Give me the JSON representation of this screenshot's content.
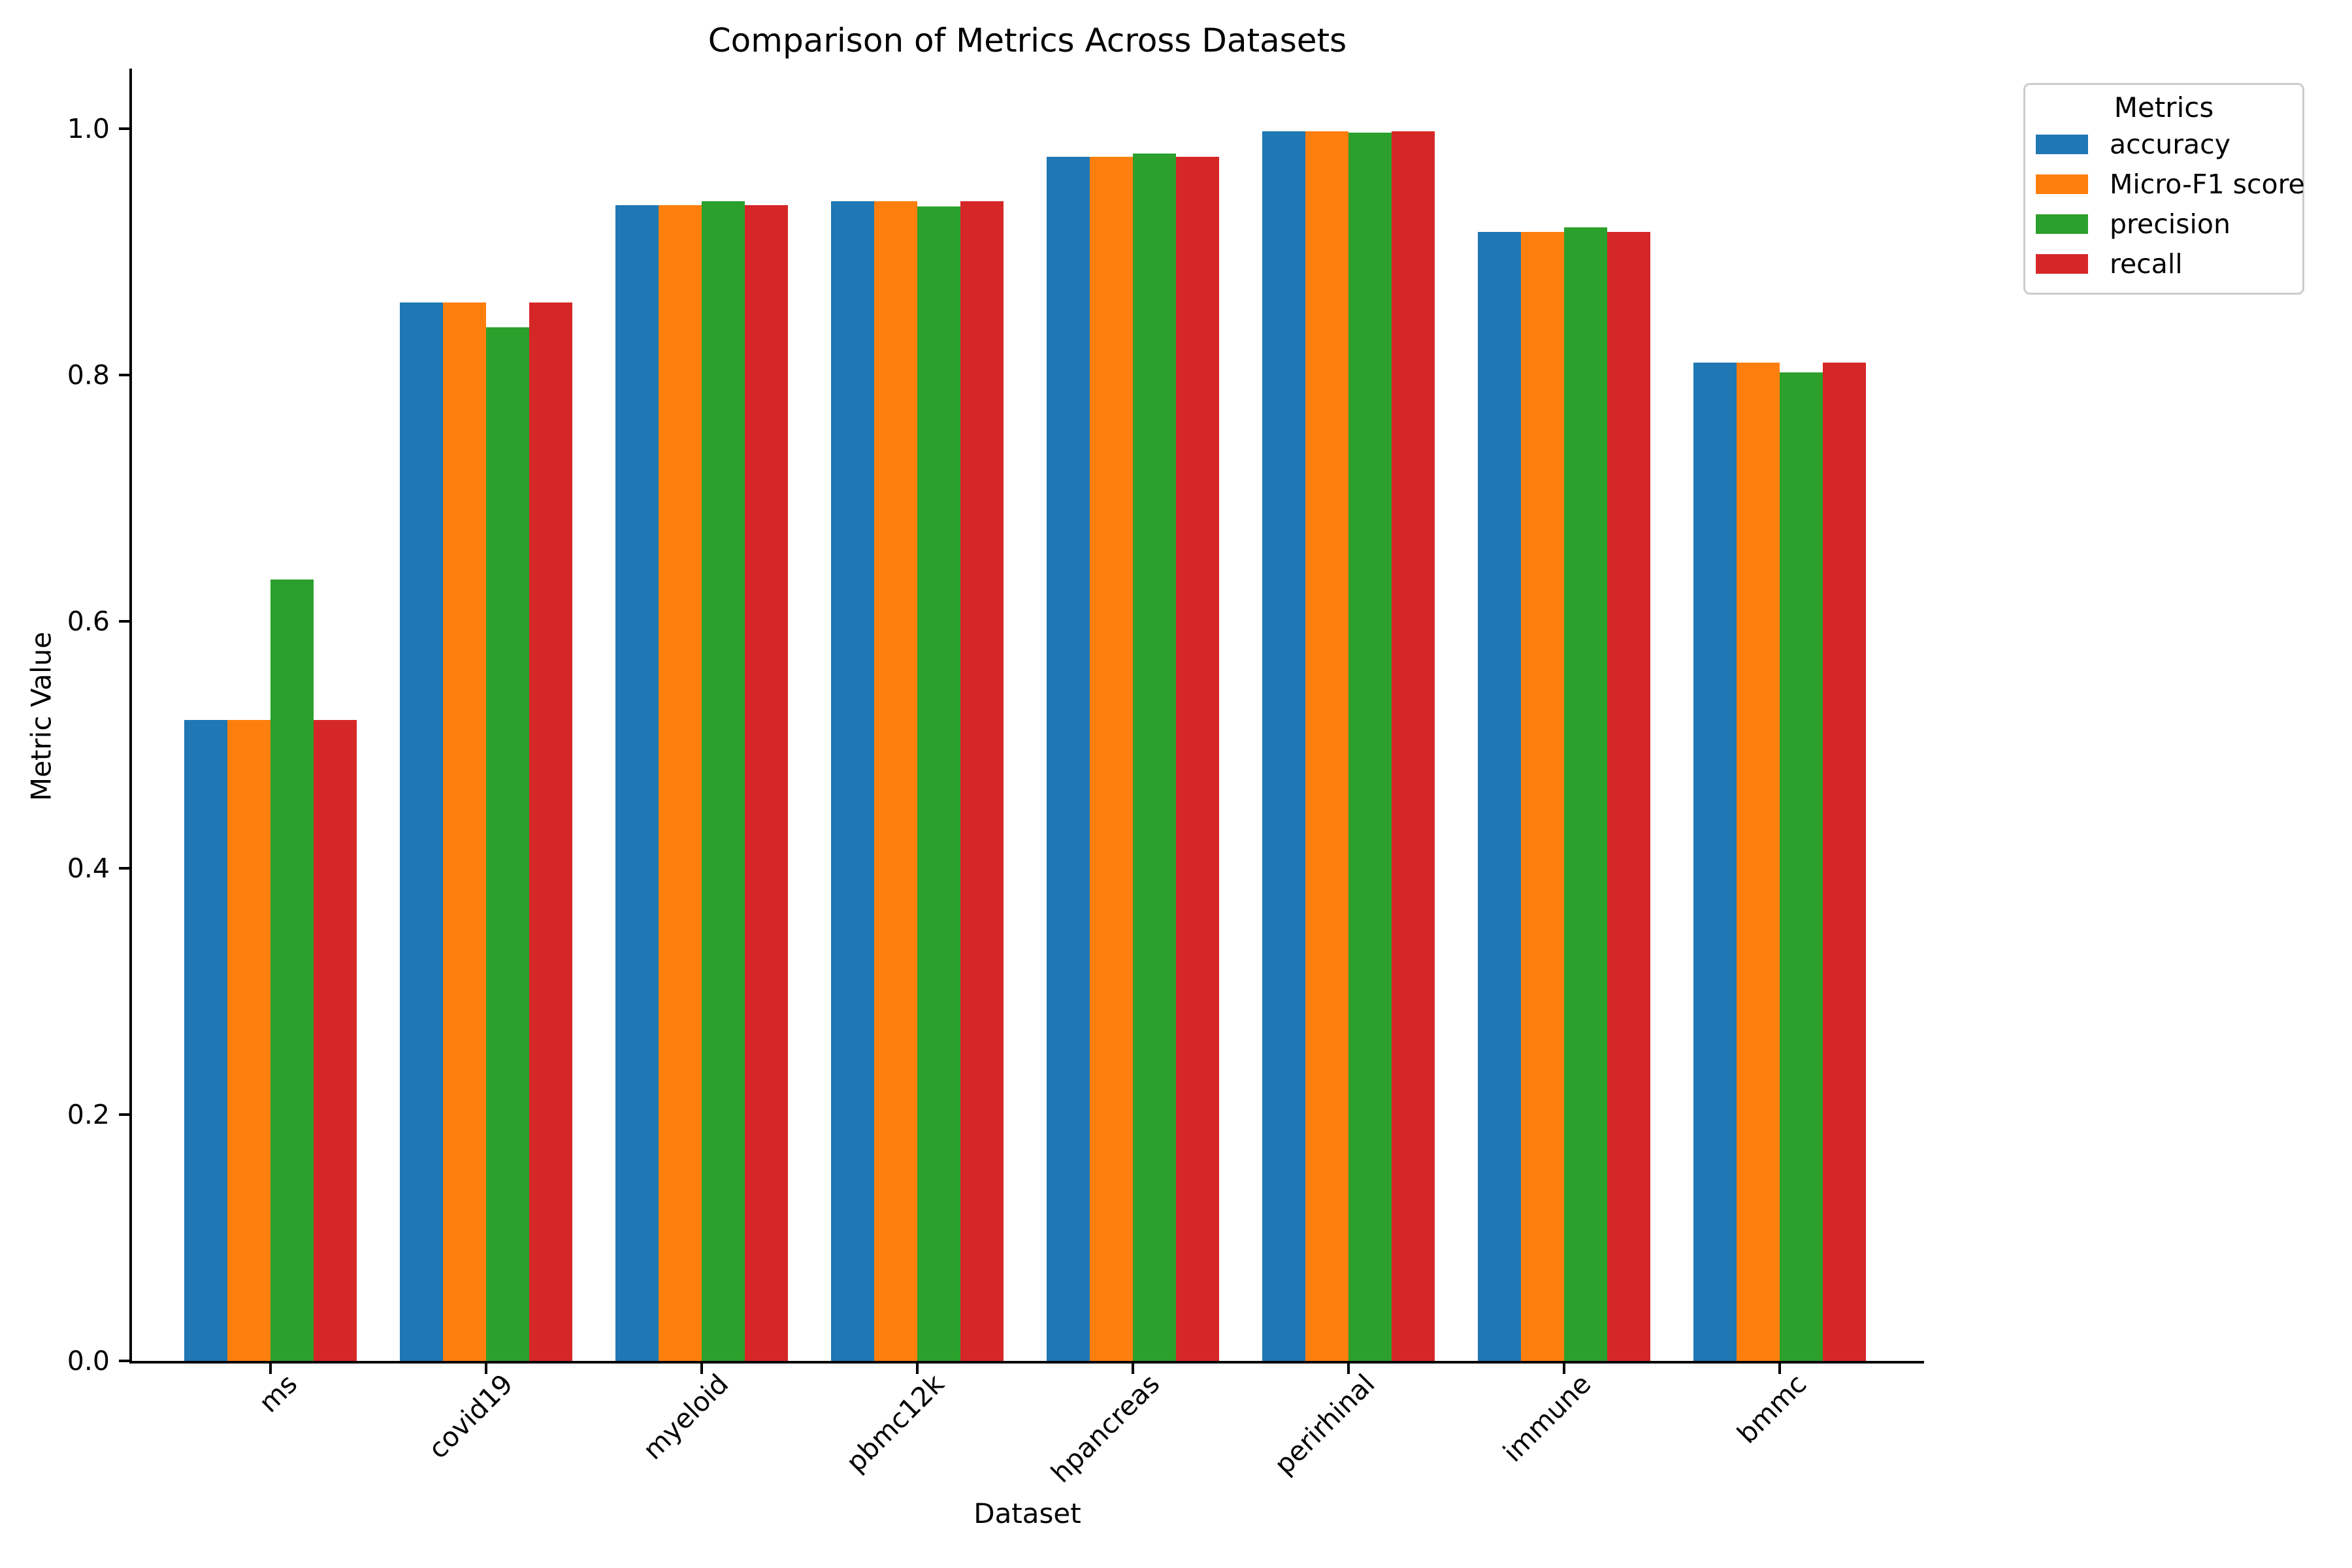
{
  "chart_data": {
    "type": "bar",
    "title": "Comparison of Metrics Across Datasets",
    "xlabel": "Dataset",
    "ylabel": "Metric Value",
    "categories": [
      "ms",
      "covid19",
      "myeloid",
      "pbmc12k",
      "hpancreas",
      "perirhinal",
      "immune",
      "bmmc"
    ],
    "series": [
      {
        "name": "accuracy",
        "color": "#1f77b4",
        "values": [
          0.52,
          0.859,
          0.938,
          0.941,
          0.977,
          0.998,
          0.916,
          0.81
        ]
      },
      {
        "name": "Micro-F1 score",
        "color": "#ff7f0e",
        "values": [
          0.52,
          0.859,
          0.938,
          0.941,
          0.977,
          0.998,
          0.916,
          0.81
        ]
      },
      {
        "name": "precision",
        "color": "#2ca02c",
        "values": [
          0.634,
          0.839,
          0.941,
          0.937,
          0.98,
          0.997,
          0.92,
          0.802
        ]
      },
      {
        "name": "recall",
        "color": "#d62728",
        "values": [
          0.52,
          0.859,
          0.938,
          0.941,
          0.977,
          0.998,
          0.916,
          0.81
        ]
      }
    ],
    "yticks": [
      0.0,
      0.2,
      0.4,
      0.6,
      0.8,
      1.0
    ],
    "ylim": [
      0.0,
      1.05
    ],
    "grid": false,
    "legend_title": "Metrics",
    "legend_position": "upper right outside",
    "axis_color": "#000000",
    "background_color": "#ffffff"
  }
}
